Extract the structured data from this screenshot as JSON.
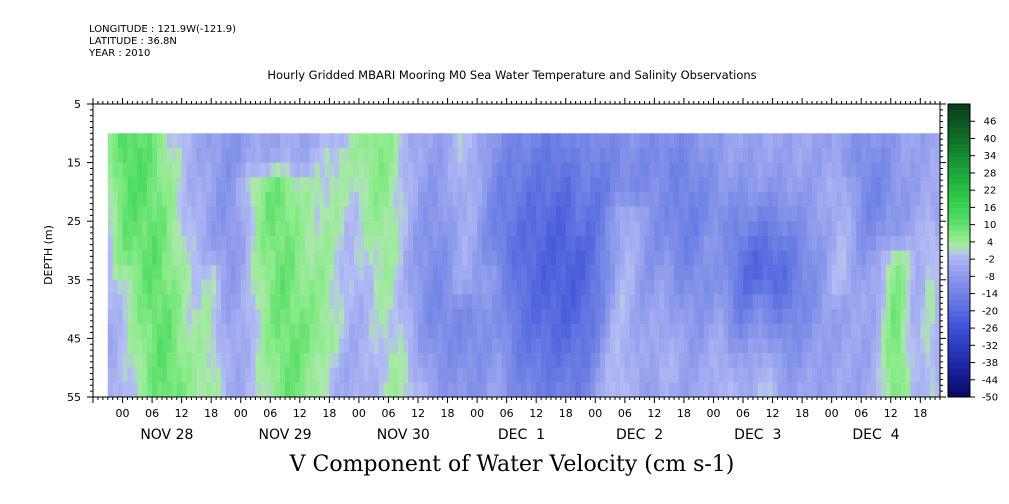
{
  "header": {
    "longitude": "LONGITUDE : 121.9W(-121.9)",
    "latitude": "LATITUDE : 36.8N",
    "year": "YEAR : 2010"
  },
  "title": "Hourly Gridded MBARI Mooring M0 Sea Water Temperature and Salinity Observations",
  "bottom_title": "V Component of Water Velocity (cm s-1)",
  "chart_data": {
    "type": "heatmap",
    "title": "Hourly Gridded MBARI Mooring M0 Sea Water Temperature and Salinity Observations",
    "xlabel": "",
    "ylabel": "DEPTH (m)",
    "colorbar_label": "V Component of Water Velocity (cm s-1)",
    "ylim": [
      5,
      55
    ],
    "y_inverted": true,
    "y_ticks": [
      5,
      15,
      25,
      35,
      45,
      55
    ],
    "data_depth_range": [
      10,
      55
    ],
    "x_range_hours": [
      "Nov 27 2010 18:00",
      "Dec 4 2010 22:00"
    ],
    "data_start": "Nov 27 2010 21:00",
    "x_hour_ticks": [
      "00",
      "06",
      "12",
      "18",
      "00",
      "06",
      "12",
      "18",
      "00",
      "06",
      "12",
      "18",
      "00",
      "06",
      "12",
      "18",
      "00",
      "06",
      "12",
      "18",
      "00",
      "06",
      "12",
      "18",
      "00",
      "06",
      "12",
      "18"
    ],
    "x_day_labels": [
      "NOV 28",
      "NOV 29",
      "NOV 30",
      "DEC  1",
      "DEC  2",
      "DEC  3",
      "DEC  4"
    ],
    "colorbar_levels": [
      46,
      40,
      34,
      28,
      22,
      16,
      10,
      4,
      -2,
      -8,
      -14,
      -20,
      -26,
      -32,
      -38,
      -44,
      -50
    ],
    "colorbar_range": [
      -50,
      52
    ],
    "colorbar_step": 2,
    "colors": {
      "strong_positive": "#0a4a1e",
      "positive": "#2fcc52",
      "weak_positive": "#9fefa0",
      "weak_negative": "#aab2f0",
      "negative": "#6d80e6",
      "strong_negative": "#0a0a6a"
    },
    "value_range_observed": [
      -24,
      16
    ],
    "features": [
      {
        "time": "Nov 28 00-06",
        "depth": "15-55",
        "sign": "positive",
        "approx_value": 12
      },
      {
        "time": "Nov 29 00-12",
        "depth": "20-55",
        "sign": "positive",
        "approx_value": 12
      },
      {
        "time": "Nov 30 00-06",
        "depth": "10-55",
        "sign": "positive",
        "approx_value": 10
      },
      {
        "time": "Nov 30 12-18",
        "depth": "10-30",
        "sign": "positive",
        "approx_value": 6
      },
      {
        "time": "Dec 2 06-12",
        "depth": "25-55",
        "sign": "positive",
        "approx_value": 10
      },
      {
        "time": "Dec 4 06-12",
        "depth": "35-55",
        "sign": "positive",
        "approx_value": 12
      },
      {
        "time": "Dec 1",
        "depth": "10-55",
        "sign": "negative",
        "approx_value": -12
      },
      {
        "time": "Dec 3 00-12",
        "depth": "25-45",
        "sign": "negative",
        "approx_value": -18
      }
    ]
  }
}
